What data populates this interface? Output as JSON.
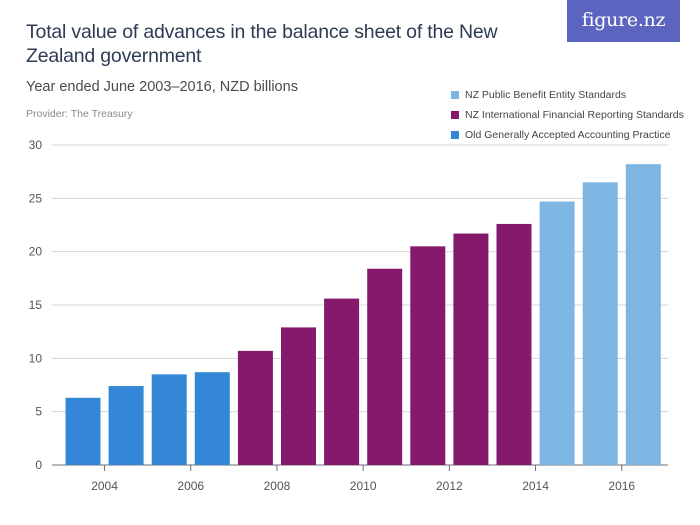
{
  "header": {
    "title": "Total value of advances in the balance sheet of the New Zealand government",
    "subtitle": "Year ended June 2003–2016, NZD billions",
    "provider": "Provider: The Treasury",
    "logo": "figure.nz"
  },
  "colors": {
    "pbe": "#7db5e3",
    "ifrs": "#851a6c",
    "gaap": "#3486d6",
    "logo_bg": "#5b64bf"
  },
  "chart_data": {
    "type": "bar",
    "title": "Total value of advances in the balance sheet of the New Zealand government",
    "xlabel": "",
    "ylabel": "NZD billions",
    "ylim": [
      0,
      30
    ],
    "yticks": [
      0,
      5,
      10,
      15,
      20,
      25,
      30
    ],
    "xticks": [
      "2004",
      "2006",
      "2008",
      "2010",
      "2012",
      "2014",
      "2016"
    ],
    "categories": [
      "2003",
      "2004",
      "2005",
      "2006",
      "2007",
      "2008",
      "2009",
      "2010",
      "2011",
      "2012",
      "2013",
      "2014",
      "2015",
      "2016"
    ],
    "values": [
      6.3,
      7.4,
      8.5,
      8.7,
      10.7,
      12.9,
      15.6,
      18.4,
      20.5,
      21.7,
      22.6,
      24.7,
      26.5,
      28.2
    ],
    "series_by_bar": [
      "gaap",
      "gaap",
      "gaap",
      "gaap",
      "ifrs",
      "ifrs",
      "ifrs",
      "ifrs",
      "ifrs",
      "ifrs",
      "ifrs",
      "pbe",
      "pbe",
      "pbe"
    ],
    "legend": [
      {
        "key": "pbe",
        "label": "NZ Public Benefit Entity Standards"
      },
      {
        "key": "ifrs",
        "label": "NZ International Financial Reporting Standards"
      },
      {
        "key": "gaap",
        "label": "Old Generally Accepted Accounting Practice"
      }
    ],
    "grid": true,
    "legend_position": "top-right"
  }
}
